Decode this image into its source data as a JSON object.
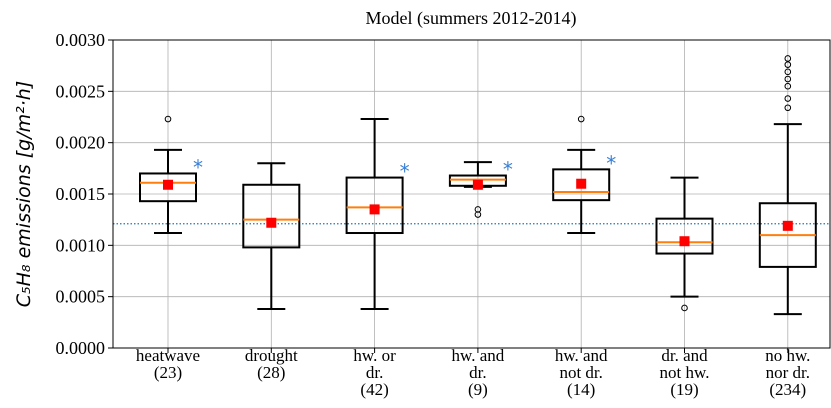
{
  "chart_data": {
    "type": "box",
    "title": "Model (summers 2012-2014)",
    "y_label": "C₅H₈ emissions [g/m²·h]",
    "categories": [
      "heatwave\n(23)",
      "drought\n(28)",
      "hw. or\ndr.\n(42)",
      "hw. and\ndr.\n(9)",
      "hw. and\nnot dr.\n(14)",
      "dr. and\nnot hw.\n(19)",
      "no hw.\nnor dr.\n(234)"
    ],
    "boxes": [
      {
        "whislo": 0.00112,
        "q1": 0.00143,
        "med": 0.00161,
        "q3": 0.0017,
        "whishi": 0.00193,
        "mean": 0.00159,
        "fliers": [
          0.00223
        ]
      },
      {
        "whislo": 0.00038,
        "q1": 0.00098,
        "med": 0.00125,
        "q3": 0.00159,
        "whishi": 0.0018,
        "mean": 0.00122,
        "fliers": []
      },
      {
        "whislo": 0.00038,
        "q1": 0.00112,
        "med": 0.00137,
        "q3": 0.00166,
        "whishi": 0.00223,
        "mean": 0.00135,
        "fliers": []
      },
      {
        "whislo": 0.00157,
        "q1": 0.00158,
        "med": 0.00164,
        "q3": 0.00168,
        "whishi": 0.00181,
        "mean": 0.00159,
        "fliers": [
          0.00135,
          0.0013
        ]
      },
      {
        "whislo": 0.00112,
        "q1": 0.00144,
        "med": 0.00152,
        "q3": 0.00174,
        "whishi": 0.00193,
        "mean": 0.0016,
        "fliers": [
          0.00223
        ]
      },
      {
        "whislo": 0.0005,
        "q1": 0.00092,
        "med": 0.00103,
        "q3": 0.00126,
        "whishi": 0.00166,
        "mean": 0.00104,
        "fliers": [
          0.00039
        ]
      },
      {
        "whislo": 0.00033,
        "q1": 0.00079,
        "med": 0.0011,
        "q3": 0.00141,
        "whishi": 0.00218,
        "mean": 0.00119,
        "fliers": [
          0.00282,
          0.00276,
          0.00269,
          0.00262,
          0.00255,
          0.00243,
          0.00234
        ]
      }
    ],
    "significance": [
      "*",
      null,
      "*",
      "*",
      "*",
      null,
      null
    ],
    "reference_line": 0.00121,
    "ylim": [
      0,
      0.003
    ],
    "yticks": [
      {
        "value": 0,
        "label": "0.0000"
      },
      {
        "value": 0.0005,
        "label": "0.0005"
      },
      {
        "value": 0.001,
        "label": "0.0010"
      },
      {
        "value": 0.0015,
        "label": "0.0015"
      },
      {
        "value": 0.002,
        "label": "0.0020"
      },
      {
        "value": 0.0025,
        "label": "0.0025"
      },
      {
        "value": 0.003,
        "label": "0.0030"
      }
    ],
    "grid": true,
    "box_color": "#000000",
    "median_color": "#ff7f0e",
    "mean_color": "#ff0000",
    "reference_color": "#1f77b4",
    "significance_color": "#3a7fd5"
  }
}
